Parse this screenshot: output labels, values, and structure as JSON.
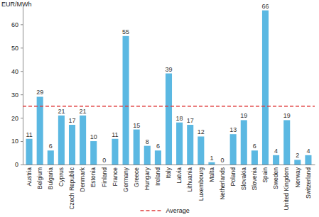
{
  "chart_data": {
    "type": "bar",
    "y_label": "EUR/MWh",
    "categories": [
      "Austria",
      "Belgium",
      "Bulgaria",
      "Cyprus",
      "Czech Republic",
      "Denmark",
      "Estonia",
      "Finland",
      "France",
      "Germany",
      "Greece",
      "Hungary",
      "Ireland",
      "Italy",
      "Latvia",
      "Lithuania",
      "Luxembourg",
      "Malta",
      "Netherlands",
      "Poland",
      "Slovakia",
      "Slovenia",
      "Spain",
      "Sweden",
      "United Kingdom",
      "Norway",
      "Switzerland"
    ],
    "values": [
      11,
      29,
      6,
      21,
      17,
      21,
      10,
      0,
      11,
      55,
      15,
      8,
      6,
      39,
      18,
      17,
      12,
      1,
      0,
      13,
      19,
      6,
      66,
      4,
      19,
      2,
      4
    ],
    "color": "#5bb8e2",
    "data_labels": true,
    "ylim": [
      0,
      68
    ],
    "yticks": [
      0,
      10,
      20,
      30,
      40,
      50,
      60
    ],
    "grid": false,
    "reference_lines": [
      {
        "name": "Average",
        "value": 25,
        "color": "#e03a3a",
        "line_style": "dashed"
      }
    ],
    "legend": "bottom"
  }
}
